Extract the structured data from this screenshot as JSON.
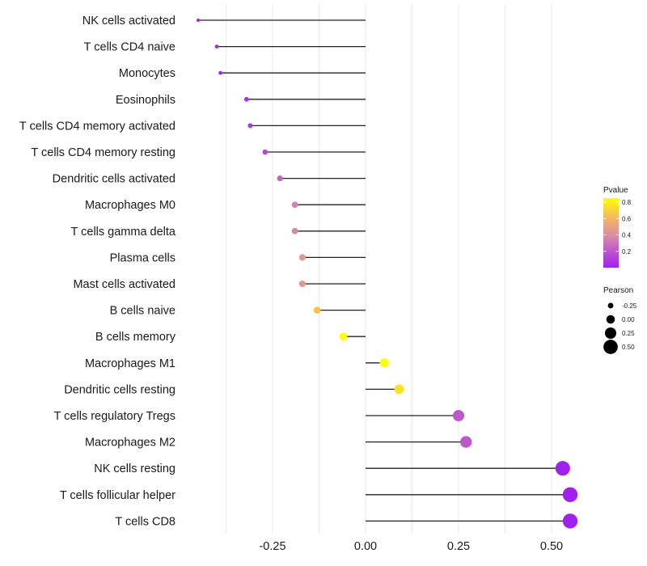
{
  "chart_data": {
    "type": "lollipop",
    "title": "",
    "xlabel": "",
    "ylabel": "",
    "xlim": [
      -0.47,
      0.58
    ],
    "xticks": [
      -0.25,
      0.0,
      0.25,
      0.5
    ],
    "xtick_labels": [
      "-0.25",
      "0.00",
      "0.25",
      "0.50"
    ],
    "grid": true,
    "categories": [
      "NK cells activated",
      "T cells CD4 naive",
      "Monocytes",
      "Eosinophils",
      "T cells CD4 memory activated",
      "T cells CD4 memory resting",
      "Dendritic cells activated",
      "Macrophages M0",
      "T cells gamma delta",
      "Plasma cells",
      "Mast cells activated",
      "B cells naive",
      "B cells memory",
      "Macrophages M1",
      "Dendritic cells resting",
      "T cells regulatory  Tregs ",
      "Macrophages M2",
      "NK cells resting",
      "T cells follicular helper",
      "T cells CD8"
    ],
    "series": [
      {
        "name": "Pearson",
        "values": [
          -0.45,
          -0.4,
          -0.39,
          -0.32,
          -0.31,
          -0.27,
          -0.23,
          -0.19,
          -0.19,
          -0.17,
          -0.17,
          -0.13,
          -0.06,
          0.05,
          0.09,
          0.25,
          0.27,
          0.53,
          0.55,
          0.55
        ]
      },
      {
        "name": "Pvalue",
        "values": [
          0.01,
          0.02,
          0.02,
          0.07,
          0.08,
          0.15,
          0.25,
          0.35,
          0.37,
          0.45,
          0.45,
          0.65,
          0.85,
          0.84,
          0.75,
          0.2,
          0.2,
          0.0,
          0.0,
          0.0
        ]
      }
    ],
    "legend": {
      "placement": "right",
      "color": {
        "title": "Pvalue",
        "ticks": [
          "0.8",
          "0.6",
          "0.4",
          "0.2"
        ],
        "tick_values": [
          0.8,
          0.6,
          0.4,
          0.2
        ],
        "range": [
          0.0,
          0.85
        ],
        "low_color": "#a020f0",
        "mid_color": "#d88aa8",
        "high_color": "#ffff00"
      },
      "size": {
        "title": "Pearson",
        "labels": [
          "-0.25",
          "0.00",
          "0.25",
          "0.50"
        ],
        "values": [
          -0.25,
          0.0,
          0.25,
          0.5
        ]
      }
    }
  }
}
